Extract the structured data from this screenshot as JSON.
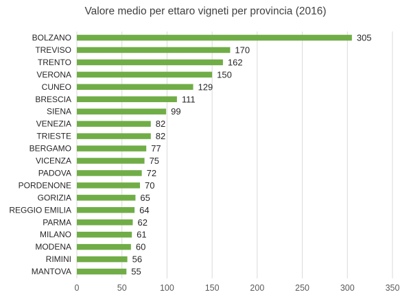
{
  "chart_data": {
    "type": "bar",
    "orientation": "horizontal",
    "title": "Valore medio per ettaro vigneti per provincia (2016)",
    "xlabel": "",
    "ylabel": "",
    "categories": [
      "BOLZANO",
      "TREVISO",
      "TRENTO",
      "VERONA",
      "CUNEO",
      "BRESCIA",
      "SIENA",
      "VENEZIA",
      "TRIESTE",
      "BERGAMO",
      "VICENZA",
      "PADOVA",
      "PORDENONE",
      "GORIZIA",
      "REGGIO EMILIA",
      "PARMA",
      "MILANO",
      "MODENA",
      "RIMINI",
      "MANTOVA"
    ],
    "values": [
      305,
      170,
      162,
      150,
      129,
      111,
      99,
      82,
      82,
      77,
      75,
      72,
      70,
      65,
      64,
      62,
      61,
      60,
      56,
      55
    ],
    "xlim": [
      0,
      350
    ],
    "xticks": [
      0,
      50,
      100,
      150,
      200,
      250,
      300,
      350
    ],
    "grid": true,
    "data_labels": true,
    "bar_color": "#70ad47"
  }
}
